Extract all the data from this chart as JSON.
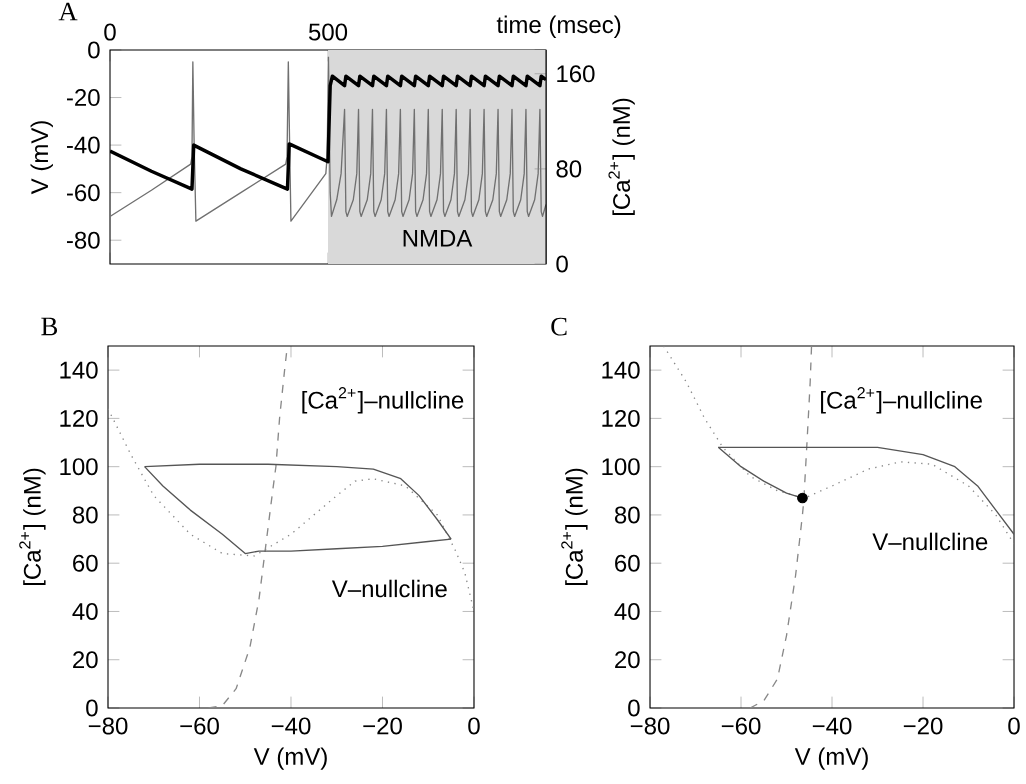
{
  "chart_data": [
    {
      "type": "line",
      "title": "A",
      "xlabel": "time (msec)",
      "ylabel": "V (mV)",
      "y2label": "[Ca$^{2+}$] (nM)",
      "xlim": [
        0,
        1000
      ],
      "xticks": [
        0,
        500
      ],
      "ylim": [
        -90,
        0
      ],
      "yticks": [
        -80,
        -60,
        -40,
        -20,
        0
      ],
      "y2lim": [
        0,
        180
      ],
      "y2ticks": [
        0,
        80,
        160
      ],
      "bands": [
        {
          "axis": "x",
          "from": 500,
          "to": 1000,
          "label": "NMDA",
          "color": "#d9d9d9"
        }
      ],
      "series": [
        {
          "type": "line",
          "color": "#707070",
          "x": [
            0,
            95,
            185,
            188,
            190,
            193,
            197,
            300,
            403,
            406,
            409,
            412,
            415,
            495,
            498,
            501,
            505,
            508,
            520,
            530,
            538,
            541,
            544,
            558,
            566,
            570,
            573,
            576,
            590,
            598,
            602,
            605,
            608,
            622,
            630,
            634,
            637,
            640,
            654,
            662,
            666,
            669,
            672,
            686,
            694,
            698,
            701,
            704,
            718,
            726,
            730,
            733,
            736,
            750,
            758,
            762,
            765,
            768,
            782,
            790,
            794,
            797,
            800,
            814,
            822,
            826,
            829,
            832,
            846,
            854,
            858,
            861,
            864,
            878,
            886,
            890,
            893,
            896,
            910,
            918,
            922,
            925,
            928,
            942,
            950,
            954,
            957,
            960,
            974,
            982,
            986,
            989,
            992,
            1000
          ],
          "values": [
            -70,
            -59,
            -48,
            -45,
            -5,
            -40,
            -72,
            -60,
            -48,
            -45,
            -5,
            -40,
            -72,
            -52,
            -45,
            -3,
            -60,
            -70,
            -63,
            -52,
            -25,
            -68,
            -70,
            -63,
            -52,
            -25,
            -68,
            -70,
            -63,
            -52,
            -25,
            -68,
            -70,
            -63,
            -52,
            -25,
            -68,
            -70,
            -63,
            -52,
            -25,
            -68,
            -70,
            -63,
            -52,
            -25,
            -68,
            -70,
            -63,
            -52,
            -25,
            -68,
            -70,
            -63,
            -52,
            -25,
            -68,
            -70,
            -63,
            -52,
            -25,
            -68,
            -70,
            -63,
            -52,
            -25,
            -68,
            -70,
            -63,
            -52,
            -25,
            -68,
            -70,
            -63,
            -52,
            -25,
            -68,
            -70,
            -63,
            -52,
            -25,
            -68,
            -70,
            -63,
            -52,
            -25,
            -68,
            -70,
            -63,
            -52,
            -25,
            -68,
            -70,
            -65
          ]
        },
        {
          "type": "line",
          "axis": "y2",
          "color": "#000000",
          "x": [
            0,
            95,
            188,
            192,
            300,
            407,
            411,
            500,
            505,
            510,
            538,
            541,
            570,
            573,
            602,
            605,
            634,
            637,
            666,
            669,
            698,
            701,
            730,
            733,
            762,
            765,
            794,
            797,
            826,
            829,
            858,
            861,
            890,
            893,
            922,
            925,
            954,
            957,
            986,
            989,
            1000
          ],
          "values": [
            95,
            78,
            63,
            100,
            80,
            63,
            101,
            86,
            150,
            158,
            150,
            158,
            150,
            158,
            150,
            158,
            150,
            158,
            150,
            158,
            150,
            158,
            150,
            158,
            150,
            158,
            150,
            158,
            150,
            158,
            150,
            158,
            150,
            158,
            150,
            158,
            150,
            158,
            150,
            158,
            155
          ]
        }
      ]
    },
    {
      "type": "line",
      "title": "B",
      "xlabel": "V (mV)",
      "ylabel": "[Ca$^{2+}$] (nM)",
      "xlim": [
        -80,
        0
      ],
      "xticks": [
        {
          "value": -80,
          "label": "−80"
        },
        {
          "value": -60,
          "label": "−60"
        },
        {
          "value": -40,
          "label": "−40"
        },
        {
          "value": -20,
          "label": "−20"
        },
        0
      ],
      "ylim": [
        0,
        150
      ],
      "yticks": [
        0,
        20,
        40,
        60,
        80,
        100,
        120,
        140
      ],
      "annotations": [
        "[Ca$^{2+}$]–nullcline",
        "V–nullcline"
      ],
      "series": [
        {
          "type": "line",
          "line_style": "dashed",
          "color": "#888888",
          "x": [
            -58,
            -55,
            -52,
            -49,
            -47,
            -46,
            -45,
            -44,
            -43.3,
            -42.5,
            -41.4,
            -40.8
          ],
          "values": [
            0,
            1,
            8,
            25,
            45,
            60,
            75,
            90,
            100,
            120,
            140,
            150
          ]
        },
        {
          "type": "line",
          "line_style": "dotted",
          "color": "#888888",
          "x": [
            -80,
            -75,
            -70,
            -62,
            -55,
            -48,
            -40,
            -30,
            -26,
            -22,
            -15,
            -8,
            -4,
            -2,
            0
          ],
          "values": [
            124,
            105,
            88,
            72,
            64,
            63,
            72,
            88,
            94,
            95,
            92,
            80,
            65,
            56,
            40
          ]
        },
        {
          "type": "line",
          "line_style": "solid",
          "color": "#555555",
          "x": [
            -72,
            -60,
            -45,
            -30,
            -22,
            -16,
            -12,
            -8,
            -5
          ],
          "values": [
            100,
            101,
            101,
            100,
            99,
            95,
            88,
            78,
            70
          ]
        },
        {
          "type": "line",
          "line_style": "solid",
          "color": "#555555",
          "x": [
            -72,
            -68,
            -62,
            -55,
            -50,
            -47,
            -40,
            -30,
            -20,
            -10,
            -5
          ],
          "values": [
            100,
            92,
            82,
            72,
            64,
            65,
            65,
            66,
            67,
            69,
            70
          ]
        }
      ]
    },
    {
      "type": "line",
      "title": "C",
      "xlabel": "V (mV)",
      "ylabel": "[Ca$^{2+}$] (nM)",
      "xlim": [
        -80,
        0
      ],
      "xticks": [
        {
          "value": -80,
          "label": "−80"
        },
        {
          "value": -60,
          "label": "−60"
        },
        {
          "value": -40,
          "label": "−40"
        },
        {
          "value": -20,
          "label": "−20"
        },
        0
      ],
      "ylim": [
        0,
        150
      ],
      "yticks": [
        0,
        20,
        40,
        60,
        80,
        100,
        120,
        140
      ],
      "annotations": [
        "[Ca$^{2+}$]–nullcline",
        "V–nullcline"
      ],
      "series": [
        {
          "type": "line",
          "line_style": "dashed",
          "color": "#888888",
          "x": [
            -58,
            -55,
            -52,
            -50,
            -48,
            -46.5,
            -46.2,
            -45.5,
            -44.8,
            -44.5
          ],
          "values": [
            0,
            3,
            12,
            30,
            55,
            80,
            86,
            110,
            135,
            150
          ]
        },
        {
          "type": "line",
          "line_style": "dotted",
          "color": "#888888",
          "x": [
            -77,
            -72,
            -68,
            -64,
            -58,
            -52,
            -46,
            -40,
            -32,
            -25,
            -18,
            -10,
            -4,
            0
          ],
          "values": [
            150,
            135,
            120,
            108,
            96,
            90,
            87,
            92,
            99,
            102,
            101,
            92,
            80,
            68
          ]
        },
        {
          "type": "line",
          "line_style": "solid",
          "color": "#555555",
          "x": [
            -65,
            -55,
            -45,
            -30,
            -20,
            -13,
            -8,
            -4,
            0
          ],
          "values": [
            108,
            108,
            108,
            108,
            105,
            100,
            92,
            82,
            72
          ]
        },
        {
          "type": "line",
          "line_style": "solid",
          "color": "#555555",
          "x": [
            -65,
            -60,
            -55,
            -50,
            -46.5
          ],
          "values": [
            108,
            100,
            94,
            89,
            87
          ]
        },
        {
          "type": "scatter",
          "marker": "circle",
          "color": "#000000",
          "x": [
            -46.5
          ],
          "values": [
            87
          ]
        }
      ]
    }
  ]
}
